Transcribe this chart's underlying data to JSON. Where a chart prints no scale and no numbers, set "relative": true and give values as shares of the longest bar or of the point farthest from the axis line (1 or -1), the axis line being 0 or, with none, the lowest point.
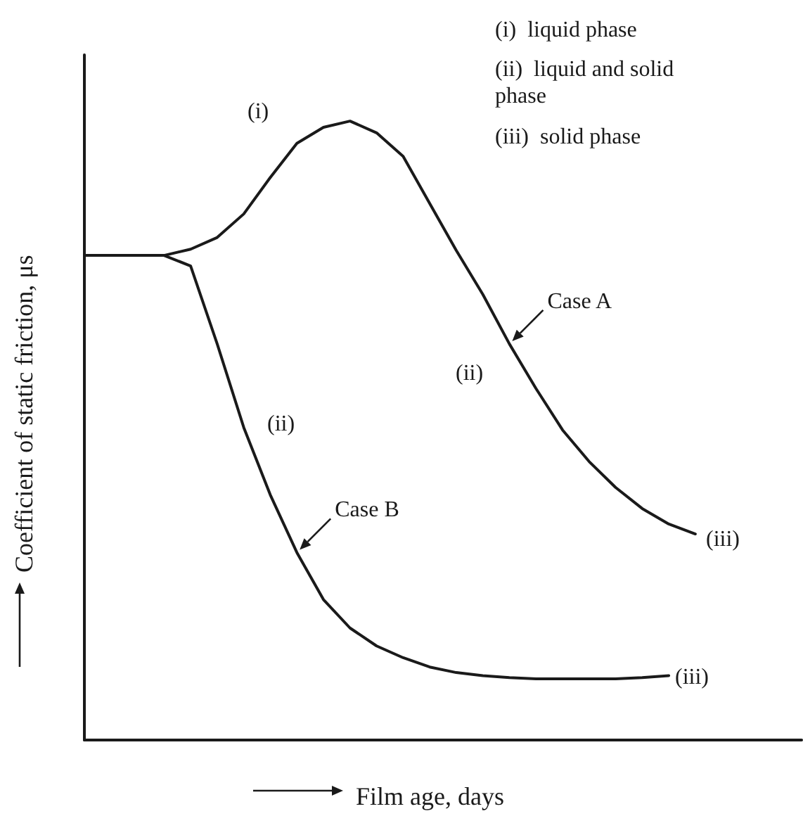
{
  "chart_data": {
    "type": "line",
    "relative": true,
    "tick_labels": false,
    "grid": false,
    "legend": false,
    "marker": "none",
    "line_style": "solid",
    "xlabel": "Film age, days",
    "ylabel": "Coefficient of static friction, μs",
    "categories": [
      null,
      null,
      null,
      null,
      null,
      null,
      null,
      null,
      null,
      null,
      null,
      null,
      null,
      null,
      null,
      null,
      null,
      null,
      null,
      null,
      null,
      null,
      null,
      null,
      null,
      null,
      null,
      null
    ],
    "series": [
      {
        "name": "Case A",
        "color": "#1a1a1a",
        "values": [
          0.783,
          0.783,
          0.783,
          0.783,
          0.793,
          0.812,
          0.85,
          0.909,
          0.964,
          0.99,
          1.0,
          0.981,
          0.943,
          0.867,
          0.791,
          0.72,
          0.64,
          0.568,
          0.501,
          0.45,
          0.408,
          0.374,
          0.349,
          0.333,
          null,
          null,
          null,
          null
        ]
      },
      {
        "name": "Case B",
        "color": "#1a1a1a",
        "values": [
          0.783,
          0.783,
          0.783,
          0.783,
          0.766,
          0.64,
          0.505,
          0.396,
          0.303,
          0.227,
          0.181,
          0.152,
          0.133,
          0.118,
          0.109,
          0.104,
          0.101,
          0.099,
          0.099,
          0.099,
          0.099,
          0.101,
          0.104,
          null,
          null,
          null,
          null,
          null
        ]
      }
    ],
    "annotations": [
      "(i)  liquid phase",
      "(ii)  liquid and solid phase",
      "(iii)  solid phase",
      "(i)",
      "(ii)",
      "(ii)",
      "(iii)",
      "(iii)"
    ]
  }
}
